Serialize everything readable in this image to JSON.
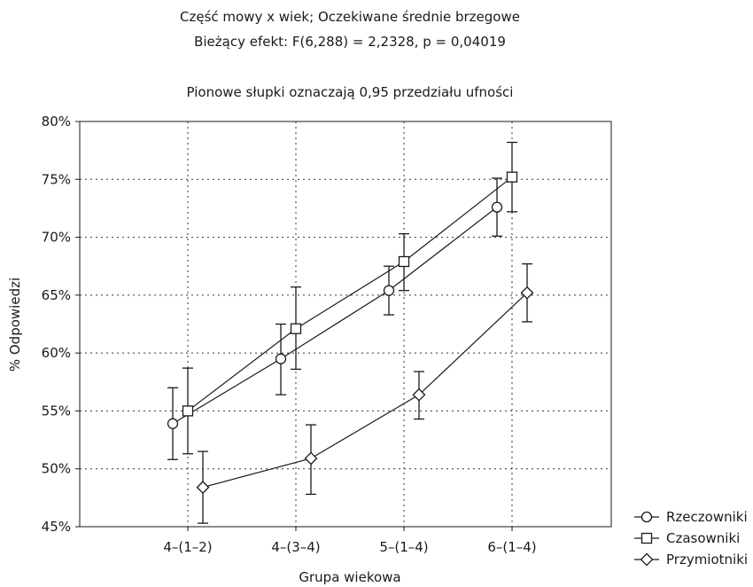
{
  "chart_data": {
    "type": "line",
    "title": "Część mowy x wiek; Oczekiwane średnie brzegowe",
    "subtitle": "Bieżący efekt: F(6,288) = 2,2328, p = 0,04019",
    "note": "Pionowe słupki oznaczają 0,95 przedziału ufności",
    "xlabel": "Grupa wiekowa",
    "ylabel": "% Odpowiedzi",
    "categories": [
      "4–(1–2)",
      "4–(3–4)",
      "5–(1–4)",
      "6–(1–4)"
    ],
    "ylim": [
      45,
      80
    ],
    "yticks": [
      45,
      50,
      55,
      60,
      65,
      70,
      75,
      80
    ],
    "ytick_labels": [
      "45%",
      "50%",
      "55%",
      "60%",
      "65%",
      "70%",
      "75%",
      "80%"
    ],
    "grid": true,
    "legend_position": "bottom-right",
    "series": [
      {
        "name": "Rzeczowniki",
        "marker": "circle",
        "values": [
          53.9,
          59.5,
          65.4,
          72.6
        ],
        "ci_low": [
          50.8,
          56.4,
          63.3,
          70.1
        ],
        "ci_high": [
          57.0,
          62.5,
          67.5,
          75.1
        ]
      },
      {
        "name": "Czasowniki",
        "marker": "square",
        "values": [
          55.0,
          62.1,
          67.9,
          75.2
        ],
        "ci_low": [
          51.3,
          58.6,
          65.4,
          72.2
        ],
        "ci_high": [
          58.7,
          65.7,
          70.3,
          78.2
        ]
      },
      {
        "name": "Przymiotniki",
        "marker": "diamond",
        "values": [
          48.4,
          50.9,
          56.4,
          65.2
        ],
        "ci_low": [
          45.3,
          47.8,
          54.3,
          62.7
        ],
        "ci_high": [
          51.5,
          53.8,
          58.4,
          67.7
        ]
      }
    ]
  }
}
